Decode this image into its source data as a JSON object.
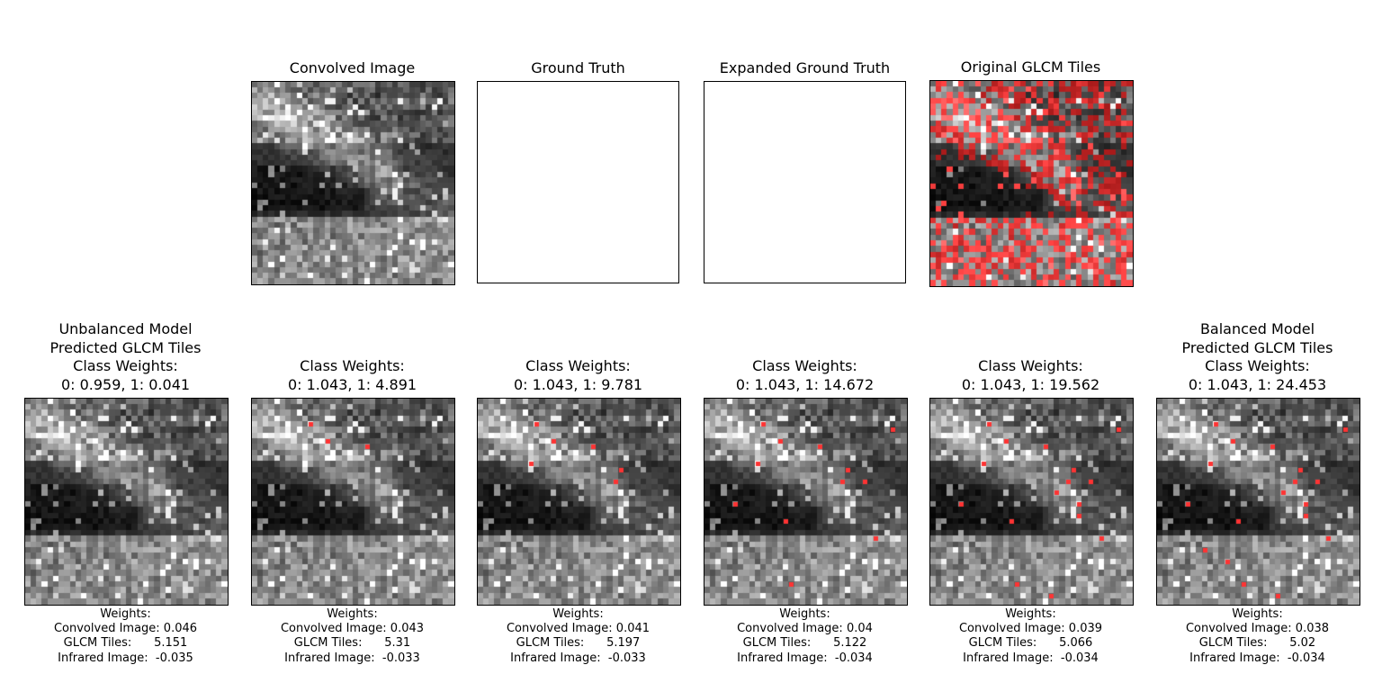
{
  "top_row": [
    {
      "title": "Convolved Image",
      "kind": "gray"
    },
    {
      "title": "Ground Truth",
      "kind": "blank"
    },
    {
      "title": "Expanded Ground Truth",
      "kind": "blank"
    },
    {
      "title": "Original GLCM Tiles",
      "kind": "glcm"
    }
  ],
  "bottom_row": [
    {
      "title": "Unbalanced Model\nPredicted GLCM Tiles\nClass Weights:\n0: 0.959, 1: 0.041",
      "red_level": 0,
      "weights": {
        "label": "Weights:",
        "convolved": "Convolved Image: 0.046",
        "glcm": "GLCM Tiles:      5.151",
        "infrared": "Infrared Image:  -0.035"
      }
    },
    {
      "title": "Class Weights:\n0: 1.043, 1: 4.891",
      "red_level": 1,
      "weights": {
        "label": "Weights:",
        "convolved": "Convolved Image: 0.043",
        "glcm": "GLCM Tiles:      5.31",
        "infrared": "Infrared Image:  -0.033"
      }
    },
    {
      "title": "Class Weights:\n0: 1.043, 1: 9.781",
      "red_level": 2,
      "weights": {
        "label": "Weights:",
        "convolved": "Convolved Image: 0.041",
        "glcm": "GLCM Tiles:      5.197",
        "infrared": "Infrared Image:  -0.033"
      }
    },
    {
      "title": "Class Weights:\n0: 1.043, 1: 14.672",
      "red_level": 3,
      "weights": {
        "label": "Weights:",
        "convolved": "Convolved Image: 0.04",
        "glcm": "GLCM Tiles:      5.122",
        "infrared": "Infrared Image:  -0.034"
      }
    },
    {
      "title": "Class Weights:\n0: 1.043, 1: 19.562",
      "red_level": 4,
      "weights": {
        "label": "Weights:",
        "convolved": "Convolved Image: 0.039",
        "glcm": "GLCM Tiles:      5.066",
        "infrared": "Infrared Image:  -0.034"
      }
    },
    {
      "title": "Balanced Model\nPredicted GLCM Tiles\nClass Weights:\n0: 1.043, 1: 24.453",
      "red_level": 5,
      "weights": {
        "label": "Weights:",
        "convolved": "Convolved Image: 0.038",
        "glcm": "GLCM Tiles:      5.02",
        "infrared": "Infrared Image:  -0.034"
      }
    }
  ],
  "colors": {
    "frame": "#000000",
    "highlight": "#ff3333",
    "background": "#ffffff"
  }
}
